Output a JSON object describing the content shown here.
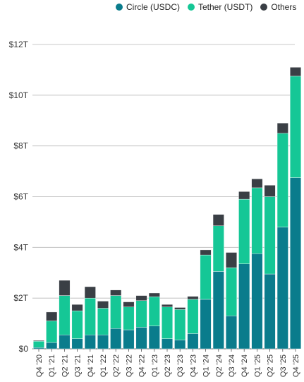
{
  "chart_data": {
    "type": "bar",
    "stacked": true,
    "title": "",
    "xlabel": "",
    "ylabel": "",
    "ylim": [
      0,
      12
    ],
    "yticks": [
      0,
      2,
      4,
      6,
      8,
      10,
      12
    ],
    "ytick_labels": [
      "$0",
      "$2T",
      "$4T",
      "$6T",
      "$8T",
      "$10T",
      "$12T"
    ],
    "grid": true,
    "legend_position": "top-right",
    "categories": [
      "Q4 '20",
      "Q1 '21",
      "Q2 '21",
      "Q3 '21",
      "Q4 '21",
      "Q1 '22",
      "Q2 '22",
      "Q3 '22",
      "Q4 '22",
      "Q1 '23",
      "Q2 '23",
      "Q3 '23",
      "Q4 '23",
      "Q1 '24",
      "Q2 '24",
      "Q3 '24",
      "Q4 '24",
      "Q1 '25",
      "Q2 '25",
      "Q3 '25",
      "Q4 '25"
    ],
    "series": [
      {
        "name": "Circle (USDC)",
        "color": "#0a7c8c",
        "values": [
          0.05,
          0.25,
          0.55,
          0.4,
          0.55,
          0.55,
          0.8,
          0.75,
          0.85,
          0.9,
          0.4,
          0.35,
          0.6,
          1.95,
          3.05,
          1.3,
          3.35,
          3.75,
          2.95,
          4.8,
          6.75
        ]
      },
      {
        "name": "Tether (USDT)",
        "color": "#15c796",
        "values": [
          0.25,
          0.85,
          1.55,
          1.1,
          1.45,
          1.05,
          1.3,
          0.9,
          1.05,
          1.15,
          1.25,
          1.2,
          1.35,
          1.75,
          1.8,
          1.9,
          2.55,
          2.6,
          3.05,
          3.7,
          4.0
        ]
      },
      {
        "name": "Others",
        "color": "#3a3f45",
        "values": [
          0.03,
          0.35,
          0.6,
          0.25,
          0.45,
          0.28,
          0.22,
          0.2,
          0.2,
          0.15,
          0.1,
          0.08,
          0.12,
          0.2,
          0.45,
          0.6,
          0.3,
          0.35,
          0.45,
          0.4,
          0.35
        ]
      }
    ]
  }
}
